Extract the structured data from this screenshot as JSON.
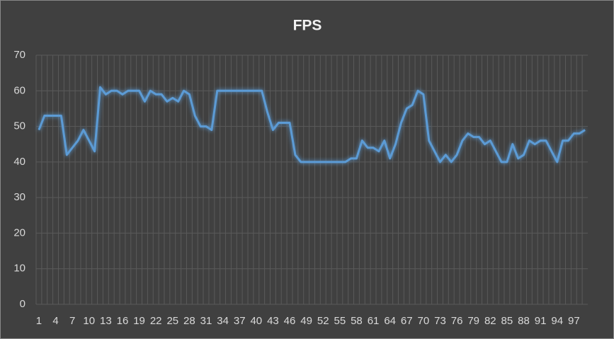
{
  "chart_data": {
    "type": "line",
    "title": "FPS",
    "categories": [
      1,
      null,
      null,
      4,
      null,
      null,
      7,
      null,
      null,
      10,
      null,
      null,
      13,
      null,
      null,
      16,
      null,
      null,
      19,
      null,
      null,
      22,
      null,
      null,
      25,
      null,
      null,
      28,
      null,
      null,
      31,
      null,
      null,
      34,
      null,
      null,
      37,
      null,
      null,
      40,
      null,
      null,
      43,
      null,
      null,
      46,
      null,
      null,
      49,
      null,
      null,
      52,
      null,
      null,
      55,
      null,
      null,
      58,
      null,
      null,
      61,
      null,
      null,
      64,
      null,
      null,
      67,
      null,
      null,
      70,
      null,
      null,
      73,
      null,
      null,
      76,
      null,
      null,
      79,
      null,
      null,
      82,
      null,
      null,
      85,
      null,
      null,
      88,
      null,
      null,
      91,
      null,
      null,
      94,
      null,
      null,
      97,
      null,
      null
    ],
    "series": [
      {
        "name": "FPS",
        "color": "#5b9bd5",
        "values": [
          49,
          53,
          53,
          53,
          53,
          42,
          44,
          46,
          49,
          46,
          43,
          61,
          59,
          60,
          60,
          59,
          60,
          60,
          60,
          57,
          60,
          59,
          59,
          57,
          58,
          57,
          60,
          59,
          53,
          50,
          50,
          49,
          60,
          60,
          60,
          60,
          60,
          60,
          60,
          60,
          60,
          54,
          49,
          51,
          51,
          51,
          42,
          40,
          40,
          40,
          40,
          40,
          40,
          40,
          40,
          40,
          41,
          41,
          46,
          44,
          44,
          43,
          46,
          41,
          45,
          51,
          55,
          56,
          60,
          59,
          46,
          43,
          40,
          42,
          40,
          42,
          46,
          48,
          47,
          47,
          45,
          46,
          43,
          40,
          40,
          45,
          41,
          42,
          46,
          45,
          46,
          46,
          43,
          40,
          46,
          46,
          48,
          48,
          49
        ]
      }
    ],
    "ylim": [
      0,
      70
    ],
    "yticks": [
      0,
      10,
      20,
      30,
      40,
      50,
      60,
      70
    ],
    "grid": true,
    "xgrid": true
  }
}
